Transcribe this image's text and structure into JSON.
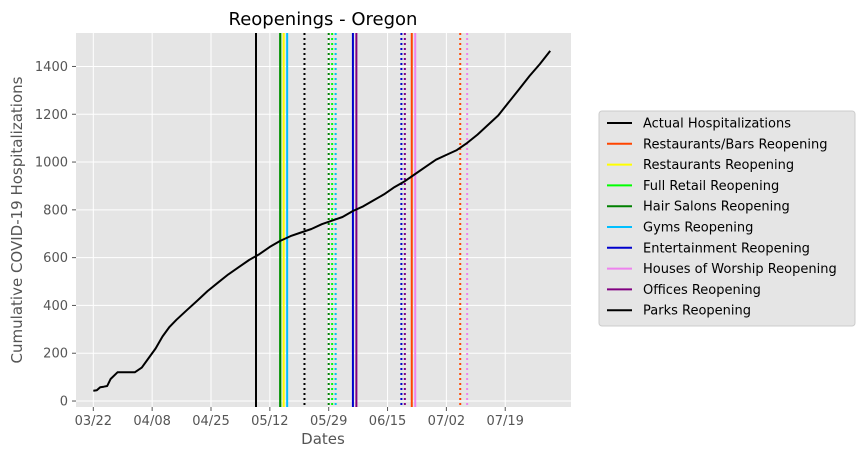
{
  "chart_data": {
    "type": "line",
    "title": "Reopenings - Oregon",
    "xlabel": "Dates",
    "ylabel": "Cumulative COVID-19 Hospitalizations",
    "year": 2020,
    "xlim": [
      "2020-03-17",
      "2020-08-07"
    ],
    "ylim": [
      -25,
      1540
    ],
    "x_ticks": [
      "2020-03-22",
      "2020-04-08",
      "2020-04-25",
      "2020-05-12",
      "2020-05-29",
      "2020-06-15",
      "2020-07-02",
      "2020-07-19"
    ],
    "x_tick_labels": [
      "03/22",
      "04/08",
      "04/25",
      "05/12",
      "05/29",
      "06/15",
      "07/02",
      "07/19"
    ],
    "y_ticks": [
      0,
      200,
      400,
      600,
      800,
      1000,
      1200,
      1400
    ],
    "grid": true,
    "legend_position": "outside-right",
    "series": [
      {
        "name": "Actual Hospitalizations",
        "color": "#000000",
        "style": "solid",
        "points": [
          [
            "2020-03-22",
            43
          ],
          [
            "2020-03-23",
            45
          ],
          [
            "2020-03-24",
            58
          ],
          [
            "2020-03-25",
            60
          ],
          [
            "2020-03-26",
            63
          ],
          [
            "2020-03-27",
            92
          ],
          [
            "2020-03-29",
            120
          ],
          [
            "2020-04-01",
            120
          ],
          [
            "2020-04-03",
            120
          ],
          [
            "2020-04-05",
            140
          ],
          [
            "2020-04-07",
            180
          ],
          [
            "2020-04-09",
            220
          ],
          [
            "2020-04-11",
            270
          ],
          [
            "2020-04-13",
            310
          ],
          [
            "2020-04-15",
            340
          ],
          [
            "2020-04-18",
            380
          ],
          [
            "2020-04-21",
            420
          ],
          [
            "2020-04-24",
            460
          ],
          [
            "2020-04-27",
            495
          ],
          [
            "2020-04-30",
            530
          ],
          [
            "2020-05-03",
            560
          ],
          [
            "2020-05-06",
            590
          ],
          [
            "2020-05-09",
            615
          ],
          [
            "2020-05-12",
            645
          ],
          [
            "2020-05-15",
            670
          ],
          [
            "2020-05-18",
            690
          ],
          [
            "2020-05-21",
            705
          ],
          [
            "2020-05-24",
            720
          ],
          [
            "2020-05-27",
            740
          ],
          [
            "2020-05-30",
            755
          ],
          [
            "2020-06-02",
            770
          ],
          [
            "2020-06-05",
            795
          ],
          [
            "2020-06-08",
            815
          ],
          [
            "2020-06-11",
            840
          ],
          [
            "2020-06-14",
            865
          ],
          [
            "2020-06-17",
            895
          ],
          [
            "2020-06-20",
            920
          ],
          [
            "2020-06-23",
            950
          ],
          [
            "2020-06-26",
            980
          ],
          [
            "2020-06-29",
            1010
          ],
          [
            "2020-07-02",
            1030
          ],
          [
            "2020-07-05",
            1050
          ],
          [
            "2020-07-08",
            1080
          ],
          [
            "2020-07-11",
            1115
          ],
          [
            "2020-07-14",
            1155
          ],
          [
            "2020-07-17",
            1195
          ],
          [
            "2020-07-20",
            1250
          ],
          [
            "2020-07-23",
            1305
          ],
          [
            "2020-07-26",
            1360
          ],
          [
            "2020-07-29",
            1410
          ],
          [
            "2020-08-01",
            1465
          ]
        ]
      }
    ],
    "reopenings": [
      {
        "name": "Restaurants/Bars Reopening",
        "color": "#ff4500",
        "dates": [
          {
            "date": "2020-06-22",
            "style": "solid"
          },
          {
            "date": "2020-07-06",
            "style": "dotted"
          }
        ]
      },
      {
        "name": "Restaurants Reopening",
        "color": "#ffff00",
        "dates": [
          {
            "date": "2020-05-16",
            "style": "solid"
          },
          {
            "date": "2020-05-31",
            "style": "dotted"
          }
        ]
      },
      {
        "name": "Full Retail Reopening",
        "color": "#00ff00",
        "dates": [
          {
            "date": "2020-05-15",
            "style": "solid"
          },
          {
            "date": "2020-05-30",
            "style": "dotted"
          }
        ]
      },
      {
        "name": "Hair Salons Reopening",
        "color": "#008000",
        "dates": [
          {
            "date": "2020-05-15",
            "style": "solid"
          },
          {
            "date": "2020-05-29",
            "style": "dotted"
          }
        ]
      },
      {
        "name": "Gyms Reopening",
        "color": "#00bfff",
        "dates": [
          {
            "date": "2020-05-17",
            "style": "solid"
          },
          {
            "date": "2020-05-31",
            "style": "dotted"
          }
        ]
      },
      {
        "name": "Entertainment Reopening",
        "color": "#0000cd",
        "dates": [
          {
            "date": "2020-06-05",
            "style": "solid"
          },
          {
            "date": "2020-06-19",
            "style": "dotted"
          }
        ]
      },
      {
        "name": "Houses of Worship Reopening",
        "color": "#ee82ee",
        "dates": [
          {
            "date": "2020-06-23",
            "style": "solid"
          },
          {
            "date": "2020-07-08",
            "style": "dotted"
          }
        ]
      },
      {
        "name": "Offices Reopening",
        "color": "#800080",
        "dates": [
          {
            "date": "2020-06-06",
            "style": "solid"
          },
          {
            "date": "2020-06-20",
            "style": "dotted"
          }
        ]
      },
      {
        "name": "Parks Reopening",
        "color": "#000000",
        "dates": [
          {
            "date": "2020-05-08",
            "style": "solid"
          },
          {
            "date": "2020-05-22",
            "style": "dotted"
          }
        ]
      }
    ],
    "legend": [
      {
        "label": "Actual Hospitalizations",
        "color": "#000000"
      },
      {
        "label": "Restaurants/Bars Reopening",
        "color": "#ff4500"
      },
      {
        "label": "Restaurants Reopening",
        "color": "#ffff00"
      },
      {
        "label": "Full Retail Reopening",
        "color": "#00ff00"
      },
      {
        "label": "Hair Salons Reopening",
        "color": "#008000"
      },
      {
        "label": "Gyms Reopening",
        "color": "#00bfff"
      },
      {
        "label": "Entertainment Reopening",
        "color": "#0000cd"
      },
      {
        "label": "Houses of Worship Reopening",
        "color": "#ee82ee"
      },
      {
        "label": "Offices Reopening",
        "color": "#800080"
      },
      {
        "label": "Parks Reopening",
        "color": "#000000"
      }
    ]
  }
}
